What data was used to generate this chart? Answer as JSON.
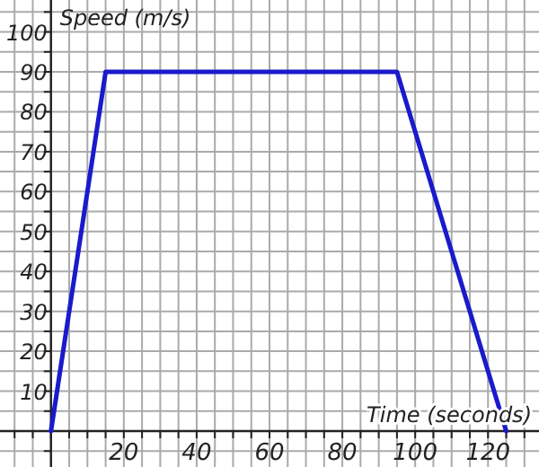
{
  "chart_data": {
    "type": "line",
    "xlabel": "Time (seconds)",
    "ylabel": "Speed (m/s)",
    "x": [
      0,
      15,
      95,
      125
    ],
    "series": [
      {
        "color": "#1a1acc",
        "values": [
          0,
          90,
          90,
          0
        ]
      }
    ],
    "xlim": [
      -14,
      134
    ],
    "ylim": [
      -9,
      108
    ],
    "xticks": [
      {
        "value": -10,
        "label": null
      },
      {
        "value": -5,
        "label": null
      },
      {
        "value": 0,
        "label": null
      },
      {
        "value": 5,
        "label": null
      },
      {
        "value": 10,
        "label": null
      },
      {
        "value": 15,
        "label": null
      },
      20,
      {
        "value": 25,
        "label": null
      },
      {
        "value": 30,
        "label": null
      },
      {
        "value": 35,
        "label": null
      },
      40,
      {
        "value": 45,
        "label": null
      },
      {
        "value": 50,
        "label": null
      },
      {
        "value": 55,
        "label": null
      },
      60,
      {
        "value": 65,
        "label": null
      },
      {
        "value": 70,
        "label": null
      },
      {
        "value": 75,
        "label": null
      },
      80,
      {
        "value": 85,
        "label": null
      },
      {
        "value": 90,
        "label": null
      },
      {
        "value": 95,
        "label": null
      },
      100,
      {
        "value": 105,
        "label": null
      },
      {
        "value": 110,
        "label": null
      },
      {
        "value": 115,
        "label": null
      },
      120,
      {
        "value": 125,
        "label": null
      },
      {
        "value": 130,
        "label": null
      }
    ],
    "yticks": [
      {
        "value": -5,
        "label": null
      },
      {
        "value": 0,
        "label": null
      },
      {
        "value": 5,
        "label": null
      },
      10,
      {
        "value": 15,
        "label": null
      },
      20,
      {
        "value": 25,
        "label": null
      },
      30,
      {
        "value": 35,
        "label": null
      },
      40,
      {
        "value": 45,
        "label": null
      },
      50,
      {
        "value": 55,
        "label": null
      },
      60,
      {
        "value": 65,
        "label": null
      },
      70,
      {
        "value": 75,
        "label": null
      },
      80,
      {
        "value": 85,
        "label": null
      },
      90,
      {
        "value": 95,
        "label": null
      },
      100,
      {
        "value": 105,
        "label": null
      }
    ],
    "grid": true,
    "marker": "none",
    "line_style": "solid"
  }
}
